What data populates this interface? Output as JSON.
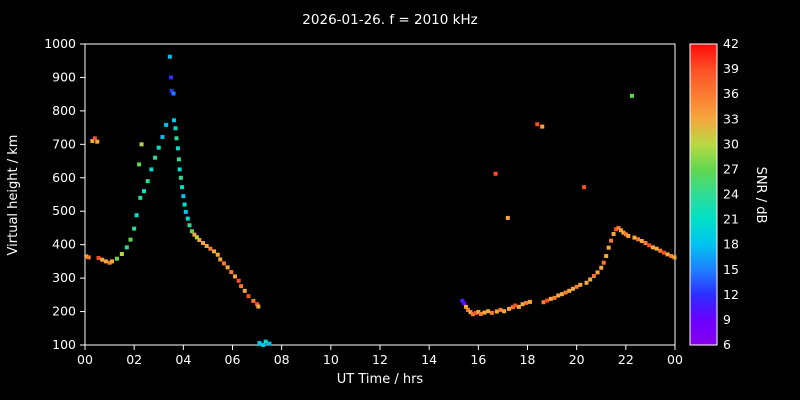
{
  "colors": {
    "background": "#000000",
    "foreground": "#ffffff"
  },
  "chart_data": {
    "type": "scatter",
    "title": "2026-01-26. f = 2010 kHz",
    "xlabel": "UT Time / hrs",
    "ylabel": "Virtual height / km",
    "xlim": [
      0,
      24
    ],
    "ylim": [
      100,
      1000
    ],
    "grid": false,
    "x_ticks": [
      0,
      2,
      4,
      6,
      8,
      10,
      12,
      14,
      16,
      18,
      20,
      22,
      24
    ],
    "x_tick_labels": [
      "00",
      "02",
      "04",
      "06",
      "08",
      "10",
      "12",
      "14",
      "16",
      "18",
      "20",
      "22",
      "00"
    ],
    "y_ticks": [
      100,
      200,
      300,
      400,
      500,
      600,
      700,
      800,
      900,
      1000
    ],
    "colorbar": {
      "label": "SNR / dB",
      "min": 6,
      "max": 42,
      "ticks": [
        6,
        9,
        12,
        15,
        18,
        21,
        24,
        27,
        30,
        33,
        36,
        39,
        42
      ],
      "stops": [
        {
          "v": 6,
          "c": "#8800ee"
        },
        {
          "v": 9,
          "c": "#6a00ff"
        },
        {
          "v": 12,
          "c": "#2d2dff"
        },
        {
          "v": 15,
          "c": "#1e7fff"
        },
        {
          "v": 18,
          "c": "#00c3f0"
        },
        {
          "v": 21,
          "c": "#00e0c8"
        },
        {
          "v": 24,
          "c": "#2edc96"
        },
        {
          "v": 27,
          "c": "#63d74f"
        },
        {
          "v": 30,
          "c": "#b8d943"
        },
        {
          "v": 33,
          "c": "#f5a83e"
        },
        {
          "v": 36,
          "c": "#fb7a31"
        },
        {
          "v": 39,
          "c": "#fd4f26"
        },
        {
          "v": 42,
          "c": "#ff0a0a"
        }
      ]
    },
    "points": [
      [
        0.05,
        365,
        33
      ],
      [
        0.15,
        362,
        36
      ],
      [
        0.3,
        710,
        33
      ],
      [
        0.4,
        718,
        39
      ],
      [
        0.5,
        708,
        33
      ],
      [
        0.55,
        360,
        39
      ],
      [
        0.7,
        355,
        33
      ],
      [
        0.85,
        350,
        33
      ],
      [
        1.0,
        346,
        36
      ],
      [
        1.1,
        350,
        33
      ],
      [
        1.3,
        358,
        27
      ],
      [
        1.5,
        372,
        30
      ],
      [
        1.7,
        392,
        24
      ],
      [
        1.85,
        415,
        27
      ],
      [
        2.0,
        448,
        24
      ],
      [
        2.1,
        488,
        21
      ],
      [
        2.2,
        640,
        27
      ],
      [
        2.25,
        540,
        24
      ],
      [
        2.3,
        700,
        30
      ],
      [
        2.4,
        560,
        21
      ],
      [
        2.55,
        590,
        24
      ],
      [
        2.7,
        625,
        21
      ],
      [
        2.85,
        660,
        24
      ],
      [
        3.0,
        690,
        21
      ],
      [
        3.15,
        722,
        18
      ],
      [
        3.3,
        758,
        18
      ],
      [
        3.45,
        962,
        18
      ],
      [
        3.5,
        900,
        12
      ],
      [
        3.52,
        860,
        12
      ],
      [
        3.6,
        852,
        15
      ],
      [
        3.62,
        772,
        18
      ],
      [
        3.68,
        748,
        21
      ],
      [
        3.72,
        718,
        24
      ],
      [
        3.78,
        688,
        21
      ],
      [
        3.82,
        655,
        24
      ],
      [
        3.85,
        625,
        21
      ],
      [
        3.9,
        600,
        24
      ],
      [
        3.95,
        572,
        21
      ],
      [
        4.0,
        545,
        18
      ],
      [
        4.05,
        520,
        21
      ],
      [
        4.1,
        498,
        18
      ],
      [
        4.18,
        478,
        21
      ],
      [
        4.25,
        458,
        24
      ],
      [
        4.35,
        440,
        27
      ],
      [
        4.45,
        430,
        33
      ],
      [
        4.55,
        422,
        30
      ],
      [
        4.65,
        414,
        33
      ],
      [
        4.8,
        405,
        33
      ],
      [
        4.95,
        396,
        33
      ],
      [
        5.1,
        388,
        36
      ],
      [
        5.25,
        380,
        33
      ],
      [
        5.4,
        370,
        33
      ],
      [
        5.5,
        356,
        33
      ],
      [
        5.65,
        344,
        36
      ],
      [
        5.8,
        332,
        33
      ],
      [
        5.95,
        318,
        36
      ],
      [
        6.1,
        305,
        33
      ],
      [
        6.25,
        292,
        39
      ],
      [
        6.35,
        276,
        36
      ],
      [
        6.5,
        262,
        33
      ],
      [
        6.65,
        246,
        39
      ],
      [
        6.85,
        232,
        36
      ],
      [
        7.0,
        222,
        39
      ],
      [
        7.05,
        215,
        33
      ],
      [
        7.1,
        106,
        18
      ],
      [
        7.25,
        100,
        18
      ],
      [
        7.35,
        110,
        21
      ],
      [
        7.5,
        104,
        18
      ],
      [
        15.35,
        232,
        12
      ],
      [
        15.42,
        225,
        9
      ],
      [
        15.5,
        214,
        33
      ],
      [
        15.58,
        205,
        36
      ],
      [
        15.68,
        198,
        33
      ],
      [
        15.78,
        192,
        36
      ],
      [
        15.9,
        196,
        39
      ],
      [
        16.0,
        199,
        33
      ],
      [
        16.1,
        193,
        36
      ],
      [
        16.25,
        197,
        33
      ],
      [
        16.4,
        201,
        33
      ],
      [
        16.55,
        196,
        36
      ],
      [
        16.7,
        612,
        39
      ],
      [
        16.75,
        200,
        33
      ],
      [
        16.9,
        205,
        36
      ],
      [
        17.05,
        201,
        33
      ],
      [
        17.2,
        480,
        33
      ],
      [
        17.25,
        208,
        33
      ],
      [
        17.4,
        213,
        36
      ],
      [
        17.5,
        218,
        39
      ],
      [
        17.65,
        214,
        33
      ],
      [
        17.8,
        222,
        33
      ],
      [
        17.95,
        226,
        36
      ],
      [
        18.1,
        229,
        33
      ],
      [
        18.4,
        760,
        39
      ],
      [
        18.6,
        753,
        33
      ],
      [
        18.65,
        228,
        36
      ],
      [
        18.8,
        233,
        39
      ],
      [
        18.95,
        238,
        33
      ],
      [
        19.1,
        241,
        36
      ],
      [
        19.25,
        248,
        33
      ],
      [
        19.4,
        252,
        33
      ],
      [
        19.55,
        257,
        36
      ],
      [
        19.7,
        262,
        33
      ],
      [
        19.85,
        268,
        33
      ],
      [
        20.0,
        274,
        36
      ],
      [
        20.15,
        280,
        33
      ],
      [
        20.3,
        572,
        39
      ],
      [
        20.4,
        286,
        33
      ],
      [
        20.55,
        296,
        33
      ],
      [
        20.7,
        306,
        36
      ],
      [
        20.85,
        317,
        33
      ],
      [
        21.0,
        331,
        33
      ],
      [
        21.1,
        346,
        36
      ],
      [
        21.2,
        366,
        33
      ],
      [
        21.3,
        391,
        33
      ],
      [
        21.4,
        412,
        36
      ],
      [
        21.5,
        432,
        33
      ],
      [
        21.6,
        446,
        39
      ],
      [
        21.7,
        450,
        36
      ],
      [
        21.8,
        443,
        33
      ],
      [
        21.9,
        436,
        33
      ],
      [
        22.0,
        431,
        36
      ],
      [
        22.1,
        426,
        33
      ],
      [
        22.25,
        845,
        27
      ],
      [
        22.35,
        421,
        33
      ],
      [
        22.5,
        416,
        36
      ],
      [
        22.65,
        411,
        33
      ],
      [
        22.8,
        405,
        36
      ],
      [
        22.95,
        398,
        39
      ],
      [
        23.1,
        392,
        33
      ],
      [
        23.25,
        388,
        33
      ],
      [
        23.4,
        382,
        36
      ],
      [
        23.55,
        376,
        39
      ],
      [
        23.7,
        371,
        33
      ],
      [
        23.85,
        366,
        36
      ],
      [
        23.98,
        362,
        33
      ]
    ]
  }
}
